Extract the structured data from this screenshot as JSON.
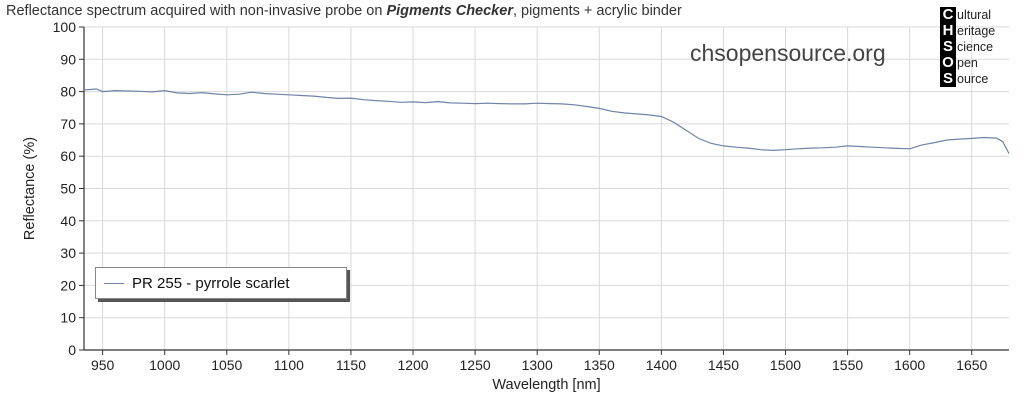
{
  "title": {
    "prefix": "Reflectance spectrum acquired with non-invasive probe on ",
    "bold": "Pigments Checker",
    "suffix": ", pigments + acrylic binder"
  },
  "watermark": "chsopensource.org",
  "logo": [
    {
      "letter": "C",
      "rest": "ultural"
    },
    {
      "letter": "H",
      "rest": "eritage"
    },
    {
      "letter": "S",
      "rest": "cience"
    },
    {
      "letter": "O",
      "rest": "pen"
    },
    {
      "letter": "S",
      "rest": "ource"
    }
  ],
  "colors": {
    "series": "#6f84a8",
    "grid": "#d9d9d9",
    "axis": "#333333"
  },
  "chart_data": {
    "type": "line",
    "title": "Reflectance spectrum acquired with non-invasive probe on Pigments Checker, pigments + acrylic binder",
    "xlabel": "Wavelength [nm]",
    "ylabel": "Reflectance (%)",
    "xlim": [
      935,
      1680
    ],
    "ylim": [
      0,
      100
    ],
    "xticks": [
      950,
      1000,
      1050,
      1100,
      1150,
      1200,
      1250,
      1300,
      1350,
      1400,
      1450,
      1500,
      1550,
      1600,
      1650
    ],
    "yticks": [
      0,
      10,
      20,
      30,
      40,
      50,
      60,
      70,
      80,
      90,
      100
    ],
    "grid": true,
    "legend_position": "bottom-left",
    "series": [
      {
        "name": "PR 255 - pyrrole scarlet",
        "color": "#6f84a8",
        "x": [
          935,
          945,
          950,
          960,
          970,
          980,
          990,
          1000,
          1010,
          1020,
          1030,
          1040,
          1050,
          1060,
          1070,
          1080,
          1090,
          1100,
          1110,
          1120,
          1130,
          1140,
          1150,
          1160,
          1170,
          1180,
          1190,
          1200,
          1210,
          1220,
          1230,
          1240,
          1250,
          1260,
          1270,
          1280,
          1290,
          1300,
          1310,
          1320,
          1330,
          1340,
          1350,
          1360,
          1370,
          1380,
          1390,
          1400,
          1410,
          1420,
          1430,
          1440,
          1450,
          1460,
          1470,
          1480,
          1490,
          1500,
          1510,
          1520,
          1530,
          1540,
          1550,
          1560,
          1570,
          1580,
          1590,
          1600,
          1610,
          1620,
          1630,
          1640,
          1650,
          1660,
          1670,
          1675,
          1680
        ],
        "y": [
          80.5,
          80.8,
          80.0,
          80.3,
          80.2,
          80.1,
          79.9,
          80.3,
          79.6,
          79.4,
          79.7,
          79.3,
          79.0,
          79.2,
          79.8,
          79.4,
          79.2,
          79.0,
          78.8,
          78.6,
          78.2,
          77.9,
          78.0,
          77.5,
          77.2,
          77.0,
          76.7,
          76.8,
          76.6,
          76.9,
          76.5,
          76.4,
          76.3,
          76.4,
          76.3,
          76.2,
          76.2,
          76.4,
          76.3,
          76.2,
          75.9,
          75.4,
          74.8,
          73.9,
          73.4,
          73.1,
          72.8,
          72.3,
          70.5,
          68.0,
          65.5,
          64.0,
          63.2,
          62.8,
          62.5,
          62.0,
          61.8,
          62.0,
          62.3,
          62.5,
          62.6,
          62.8,
          63.2,
          63.0,
          62.8,
          62.6,
          62.4,
          62.3,
          63.5,
          64.2,
          65.0,
          65.3,
          65.5,
          65.8,
          65.6,
          64.5,
          60.8
        ]
      }
    ]
  }
}
